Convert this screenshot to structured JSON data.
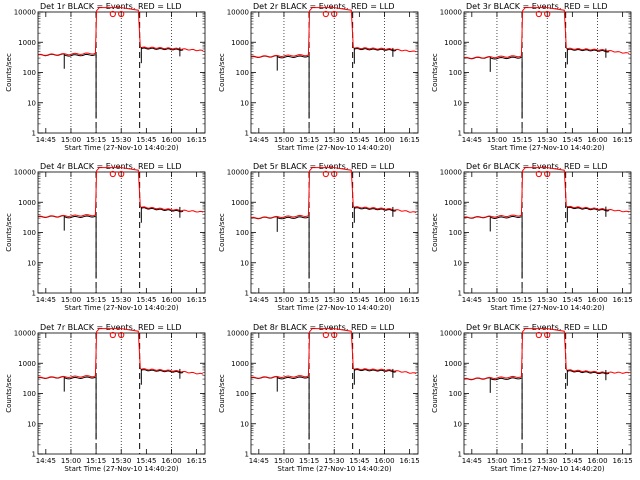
{
  "chart_data": {
    "type": "line",
    "y_scale": "log",
    "ylim": [
      1,
      10000
    ],
    "xlim": [
      "14:40:20",
      "16:20"
    ],
    "ylabel": "Counts/sec",
    "xlabel": "Start Time (27-Nov-10 14:40:20)",
    "x_tick_labels": [
      "14:45",
      "15:00",
      "15:15",
      "15:30",
      "15:45",
      "16:00",
      "16:15"
    ],
    "y_tick_labels": [
      "1",
      "10",
      "100",
      "1000",
      "10000"
    ],
    "dotted_vlines": [
      "15:00",
      "15:30",
      "16:00"
    ],
    "dashed_vlines": [
      "15:15",
      "15:41"
    ],
    "colors": {
      "events": "#000000",
      "lld": "#ff0000"
    },
    "panels": [
      {
        "title": "Det 1r BLACK = Events, RED = LLD",
        "levels": [
          380,
          430,
          680,
          620,
          520
        ]
      },
      {
        "title": "Det 2r BLACK = Events, RED = LLD",
        "levels": [
          330,
          380,
          650,
          600,
          480
        ]
      },
      {
        "title": "Det 3r BLACK = Events, RED = LLD",
        "levels": [
          300,
          350,
          620,
          560,
          420
        ]
      },
      {
        "title": "Det 4r BLACK = Events, RED = LLD",
        "levels": [
          330,
          380,
          700,
          560,
          470
        ]
      },
      {
        "title": "Det 5r BLACK = Events, RED = LLD",
        "levels": [
          300,
          360,
          700,
          600,
          450
        ]
      },
      {
        "title": "Det 6r BLACK = Events, RED = LLD",
        "levels": [
          310,
          370,
          720,
          600,
          470
        ]
      },
      {
        "title": "Det 7r BLACK = Events, RED = LLD",
        "levels": [
          330,
          380,
          650,
          560,
          430
        ]
      },
      {
        "title": "Det 8r BLACK = Events, RED = LLD",
        "levels": [
          330,
          380,
          650,
          600,
          450
        ]
      },
      {
        "title": "Det 9r BLACK = Events, RED = LLD",
        "levels": [
          300,
          360,
          600,
          500,
          480
        ]
      }
    ]
  }
}
